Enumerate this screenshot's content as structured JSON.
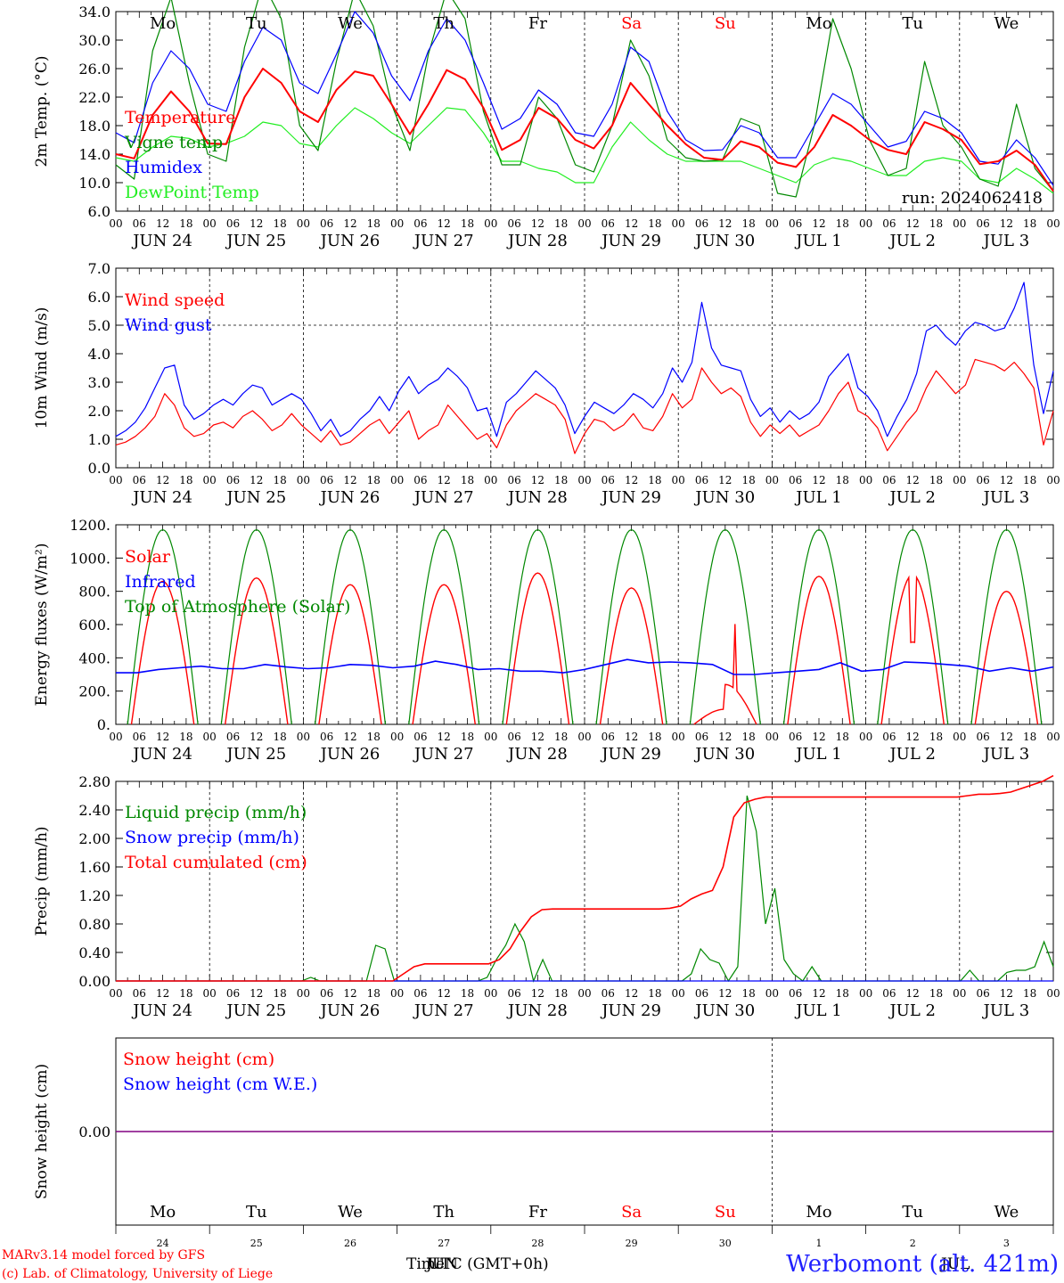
{
  "footer": {
    "credit_line1": "MARv3.14 model forced by GFS",
    "credit_line2": "(c) Lab. of Climatology, University of Liege",
    "time_label": "Time",
    "utc_label": "UTC (GMT+0h)",
    "month_mark_1": "JUN",
    "month_mark_2": "JUL",
    "station": "Werbomont (alt. 421m)"
  },
  "colors": {
    "red": "#ff0000",
    "dark_green": "#008800",
    "blue": "#0000ff",
    "light_green": "#22ee22",
    "purple": "#800080"
  },
  "days": {
    "names": [
      "Mo",
      "Tu",
      "We",
      "Th",
      "Fr",
      "Sa",
      "Su",
      "Mo",
      "Tu",
      "We"
    ],
    "weekend": [
      false,
      false,
      false,
      false,
      false,
      true,
      true,
      false,
      false,
      false
    ],
    "date_labels": [
      "JUN 24",
      "JUN 25",
      "JUN 26",
      "JUN 27",
      "JUN 28",
      "JUN 29",
      "JUN 30",
      "JUL  1",
      "JUL  2",
      "JUL  3"
    ],
    "day_numbers": [
      "24",
      "25",
      "26",
      "27",
      "28",
      "29",
      "30",
      "1",
      "2",
      "3"
    ]
  },
  "hour_ticks": [
    "00",
    "06",
    "12",
    "18"
  ],
  "chart_data": [
    {
      "id": "temperature",
      "type": "line",
      "ylabel": "2m Temp. (°C)",
      "ylim": [
        6.0,
        34.0
      ],
      "yticks": [
        "6.0",
        "10.0",
        "14.0",
        "18.0",
        "22.0",
        "26.0",
        "30.0",
        "34.0"
      ],
      "annotation": "run: 2024062418",
      "hours_per_point": 6,
      "series": [
        {
          "name": "Temperature",
          "color": "red",
          "values": [
            14,
            13.4,
            19.5,
            22.8,
            20,
            15.5,
            15.4,
            22,
            26,
            24,
            20,
            18.5,
            23,
            25.6,
            25,
            21,
            16.8,
            21,
            25.8,
            24.5,
            20.5,
            14.6,
            16,
            20.5,
            19,
            16,
            14.8,
            18,
            24,
            21,
            18,
            15.4,
            13.5,
            13.2,
            15.8,
            15,
            12.8,
            12.2,
            15,
            19.5,
            18,
            16,
            14.6,
            14,
            18.5,
            17.5,
            16,
            12.6,
            13,
            14.5,
            12.5,
            8.8
          ]
        },
        {
          "name": "Vigne temp",
          "color": "dark_green",
          "values": [
            12.5,
            10.5,
            28.5,
            36,
            24,
            14,
            13,
            29,
            38,
            33,
            18,
            14.5,
            27,
            37,
            32,
            21,
            14.5,
            28,
            37,
            33,
            20,
            12.5,
            12.5,
            22,
            19,
            12.5,
            11.5,
            18,
            30,
            25,
            16,
            13.5,
            13,
            13.2,
            19,
            18,
            8.5,
            8,
            18,
            33,
            26,
            16,
            11,
            12,
            27,
            18,
            15,
            10.5,
            9.5,
            21,
            12,
            8.8
          ]
        },
        {
          "name": "Humidex",
          "color": "blue",
          "values": [
            17,
            15.6,
            24,
            28.5,
            26,
            21,
            20,
            27,
            31.8,
            30,
            24,
            22.5,
            28,
            34,
            31,
            25,
            21.5,
            28.5,
            33,
            30,
            24,
            17.5,
            19,
            23,
            21,
            17,
            16.5,
            21,
            29,
            27,
            20,
            16,
            14.5,
            14.6,
            18,
            17,
            13.5,
            13.5,
            18,
            22.5,
            21,
            18,
            15,
            15.8,
            20,
            19,
            17,
            13,
            12.6,
            16,
            13.5,
            9.6
          ]
        },
        {
          "name": "DewPoint Temp",
          "color": "light_green",
          "values": [
            13.5,
            13,
            15,
            16.5,
            16.2,
            15,
            15.5,
            16.5,
            18.5,
            18,
            15.5,
            15,
            18,
            20.5,
            19,
            17,
            15.5,
            18,
            20.5,
            20.2,
            17,
            13,
            13,
            12,
            11.5,
            10,
            10,
            15,
            18.5,
            16,
            14,
            13,
            13,
            13,
            13,
            12,
            11,
            10,
            12.5,
            13.5,
            13,
            12,
            11,
            11,
            13,
            13.5,
            13,
            10.5,
            10,
            12,
            10.5,
            8.5
          ]
        }
      ]
    },
    {
      "id": "wind",
      "type": "line",
      "ylabel": "10m Wind (m/s)",
      "ylim": [
        0.0,
        7.0
      ],
      "yticks": [
        "0.0",
        "1.0",
        "2.0",
        "3.0",
        "4.0",
        "5.0",
        "6.0",
        "7.0"
      ],
      "reference_line": 5.0,
      "hours_per_point": 3,
      "series": [
        {
          "name": "Wind speed",
          "color": "red",
          "values": [
            0.8,
            0.9,
            1.1,
            1.4,
            1.8,
            2.6,
            2.2,
            1.4,
            1.1,
            1.2,
            1.5,
            1.6,
            1.4,
            1.8,
            2.0,
            1.7,
            1.3,
            1.5,
            1.9,
            1.5,
            1.2,
            0.9,
            1.3,
            0.8,
            0.9,
            1.2,
            1.5,
            1.7,
            1.2,
            1.6,
            2.0,
            1.0,
            1.3,
            1.5,
            2.2,
            1.8,
            1.4,
            1.0,
            1.2,
            0.7,
            1.5,
            2.0,
            2.3,
            2.6,
            2.4,
            2.2,
            1.7,
            0.5,
            1.2,
            1.7,
            1.6,
            1.3,
            1.5,
            1.9,
            1.4,
            1.3,
            1.8,
            2.6,
            2.1,
            2.4,
            3.5,
            3.0,
            2.6,
            2.8,
            2.5,
            1.6,
            1.1,
            1.5,
            1.2,
            1.5,
            1.1,
            1.3,
            1.5,
            2.0,
            2.6,
            3.0,
            2.0,
            1.8,
            1.4,
            0.6,
            1.1,
            1.6,
            2.0,
            2.8,
            3.4,
            3.0,
            2.6,
            2.9,
            3.8,
            3.7,
            3.6,
            3.4,
            3.7,
            3.3,
            2.8,
            0.8,
            2.0
          ]
        },
        {
          "name": "Wind gust",
          "color": "blue",
          "values": [
            1.1,
            1.3,
            1.6,
            2.1,
            2.8,
            3.5,
            3.6,
            2.2,
            1.7,
            1.9,
            2.2,
            2.4,
            2.2,
            2.6,
            2.9,
            2.8,
            2.2,
            2.4,
            2.6,
            2.4,
            1.9,
            1.3,
            1.7,
            1.1,
            1.3,
            1.7,
            2.0,
            2.5,
            2.0,
            2.7,
            3.2,
            2.6,
            2.9,
            3.1,
            3.5,
            3.2,
            2.8,
            2.0,
            2.1,
            1.1,
            2.3,
            2.6,
            3.0,
            3.4,
            3.1,
            2.8,
            2.2,
            1.2,
            1.8,
            2.3,
            2.1,
            1.9,
            2.2,
            2.6,
            2.4,
            2.1,
            2.6,
            3.5,
            3.0,
            3.7,
            5.8,
            4.2,
            3.6,
            3.5,
            3.4,
            2.4,
            1.8,
            2.1,
            1.6,
            2.0,
            1.7,
            1.9,
            2.3,
            3.2,
            3.6,
            4.0,
            2.8,
            2.5,
            2.0,
            1.1,
            1.8,
            2.4,
            3.3,
            4.8,
            5.0,
            4.6,
            4.3,
            4.8,
            5.1,
            5.0,
            4.8,
            4.9,
            5.6,
            6.5,
            3.6,
            1.9,
            3.4
          ]
        }
      ]
    },
    {
      "id": "energy",
      "type": "line",
      "ylabel": "Energy fluxes (W/m²)",
      "ylim": [
        0,
        1200
      ],
      "yticks": [
        "0.",
        "200.",
        "400.",
        "600.",
        "800.",
        "1000.",
        "1200."
      ],
      "series": [
        {
          "name": "Solar",
          "color": "red",
          "peaks": [
            860,
            880,
            840,
            840,
            910,
            820,
            760,
            890,
            900,
            800
          ]
        },
        {
          "name": "Infrared",
          "color": "blue",
          "values": [
            310,
            310,
            330,
            340,
            350,
            335,
            335,
            360,
            345,
            335,
            340,
            360,
            355,
            340,
            350,
            380,
            360,
            330,
            335,
            320,
            320,
            310,
            330,
            360,
            390,
            370,
            375,
            370,
            360,
            300,
            300,
            310,
            320,
            330,
            370,
            320,
            330,
            375,
            370,
            360,
            350,
            320,
            340,
            320,
            345
          ]
        },
        {
          "name": "Top of Atmosphere (Solar)",
          "color": "dark_green",
          "peak": 1170
        }
      ]
    },
    {
      "id": "precip",
      "type": "line",
      "ylabel": "Precip (mm/h)",
      "ylim": [
        0.0,
        2.8
      ],
      "yticks": [
        "0.00",
        "0.40",
        "0.80",
        "1.20",
        "1.60",
        "2.00",
        "2.40",
        "2.80"
      ],
      "series": [
        {
          "name": "Liquid precip (mm/h)",
          "color": "dark_green",
          "values": [
            0,
            0,
            0,
            0,
            0,
            0,
            0,
            0,
            0,
            0,
            0,
            0,
            0,
            0,
            0,
            0,
            0,
            0,
            0,
            0,
            0,
            0.05,
            0,
            0,
            0,
            0,
            0,
            0,
            0.5,
            0.45,
            0,
            0,
            0,
            0,
            0,
            0,
            0,
            0,
            0,
            0,
            0.05,
            0.3,
            0.5,
            0.8,
            0.55,
            0,
            0.3,
            0,
            0,
            0,
            0,
            0,
            0,
            0,
            0,
            0,
            0,
            0,
            0,
            0,
            0,
            0,
            0.1,
            0.45,
            0.3,
            0.25,
            0,
            0.2,
            2.6,
            2.1,
            0.8,
            1.3,
            0.3,
            0.1,
            0,
            0.2,
            0,
            0,
            0,
            0,
            0,
            0,
            0,
            0,
            0,
            0,
            0,
            0,
            0,
            0,
            0,
            0,
            0.15,
            0,
            0,
            0,
            0.12,
            0.15,
            0.15,
            0.2,
            0.55,
            0.2
          ]
        },
        {
          "name": "Snow precip (mm/h)",
          "color": "blue",
          "values": [
            0,
            0
          ]
        },
        {
          "name": "Total cumulated (cm)",
          "color": "red",
          "values": [
            0,
            0,
            0,
            0,
            0,
            0,
            0,
            0,
            0,
            0,
            0,
            0,
            0,
            0,
            0,
            0,
            0,
            0,
            0,
            0,
            0,
            0,
            0,
            0,
            0,
            0,
            0,
            0.1,
            0.2,
            0.24,
            0.24,
            0.24,
            0.24,
            0.24,
            0.24,
            0.24,
            0.3,
            0.45,
            0.7,
            0.9,
            1.0,
            1.01,
            1.01,
            1.01,
            1.01,
            1.01,
            1.01,
            1.01,
            1.01,
            1.01,
            1.01,
            1.01,
            1.02,
            1.05,
            1.15,
            1.22,
            1.27,
            1.6,
            2.3,
            2.5,
            2.55,
            2.58,
            2.58,
            2.58,
            2.58,
            2.58,
            2.58,
            2.58,
            2.58,
            2.58,
            2.58,
            2.58,
            2.58,
            2.58,
            2.58,
            2.58,
            2.58,
            2.58,
            2.58,
            2.58,
            2.6,
            2.62,
            2.62,
            2.63,
            2.65,
            2.7,
            2.75,
            2.8,
            2.88
          ]
        }
      ]
    },
    {
      "id": "snow",
      "type": "line",
      "ylabel": "Snow height (cm)",
      "yticks": [
        "0.00"
      ],
      "series": [
        {
          "name": "Snow height (cm)",
          "color": "red",
          "values": [
            0,
            0
          ]
        },
        {
          "name": "Snow height (cm W.E.)",
          "color": "blue",
          "values": [
            0,
            0
          ]
        }
      ]
    }
  ]
}
